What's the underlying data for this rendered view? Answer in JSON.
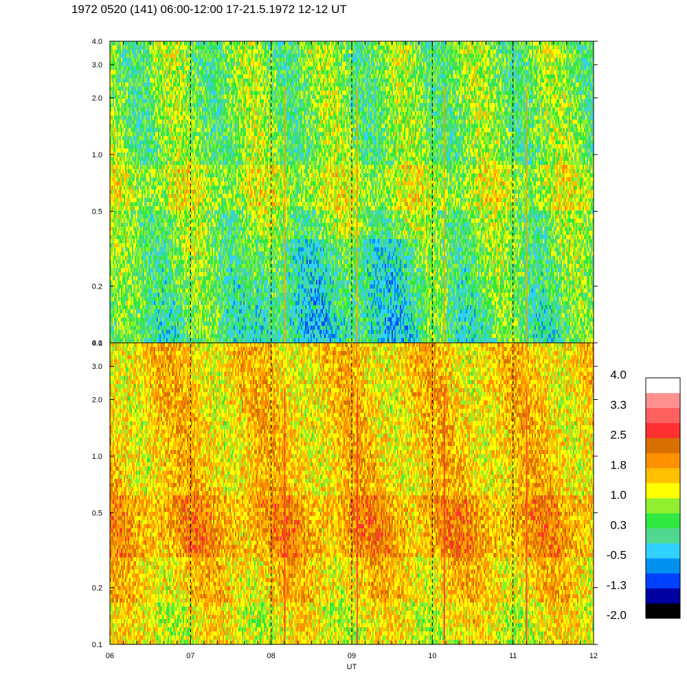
{
  "title": "1972 0520 (141) 06:00-12:00 17-21.5.1972  12-12 UT",
  "chart_data": {
    "type": "heatmap",
    "xlabel": "UT",
    "x_ticks": [
      "06",
      "07",
      "08",
      "09",
      "10",
      "11",
      "12"
    ],
    "xlim": [
      6,
      12
    ],
    "y_scale": "log",
    "ylim": [
      0.1,
      4.0
    ],
    "y_ticks": [
      "0.1",
      "0.2",
      "0.5",
      "1.0",
      "2.0",
      "3.0",
      "4.0"
    ],
    "y_tick_values": [
      0.1,
      0.2,
      0.5,
      1.0,
      2.0,
      3.0,
      4.0
    ],
    "hour_markers": [
      7,
      8,
      9,
      10,
      11
    ],
    "panels": [
      {
        "name": "upper",
        "dominant_level": 0.6
      },
      {
        "name": "lower",
        "dominant_level": 1.5
      }
    ],
    "colorbar": {
      "tick_labels": [
        "4.0",
        "3.3",
        "2.5",
        "1.8",
        "1.0",
        "0.3",
        "-0.5",
        "-1.3",
        "-2.0"
      ],
      "range": [
        -2.0,
        4.0
      ],
      "colors": [
        "#000000",
        "#0000a0",
        "#0040ff",
        "#0090f0",
        "#30d0ff",
        "#50d890",
        "#30e840",
        "#90f030",
        "#ffff00",
        "#ffc000",
        "#ff9000",
        "#d87000",
        "#ff3030",
        "#ff6060",
        "#ff9090",
        "#ffffff"
      ]
    }
  }
}
